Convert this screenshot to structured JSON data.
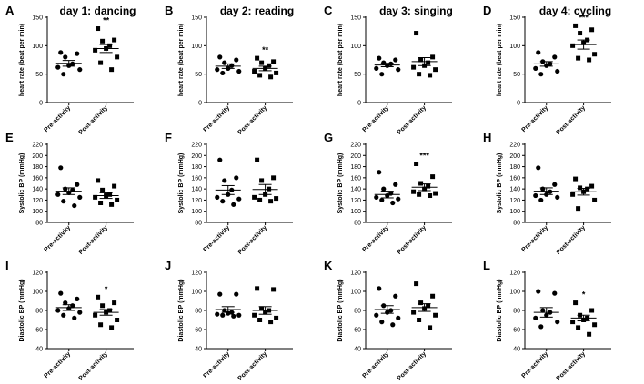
{
  "chart_data": [
    {
      "letter": "A",
      "title": "day 1: dancing",
      "type": "scatter",
      "ylabel": "heart rate (beat per min)",
      "ylim": [
        0,
        150
      ],
      "yticks": [
        0,
        50,
        100,
        150
      ],
      "categories": [
        "Pre-activity",
        "Post-activity"
      ],
      "series": [
        {
          "values": [
            88,
            86,
            80,
            68,
            65,
            62,
            58,
            50
          ]
        },
        {
          "values": [
            130,
            110,
            108,
            100,
            95,
            92,
            80,
            70,
            58
          ]
        }
      ],
      "means": [
        69,
        95
      ],
      "sem": [
        5,
        7
      ],
      "significance": "**"
    },
    {
      "letter": "B",
      "title": "day 2: reading",
      "type": "scatter",
      "ylabel": "heart rate (beat per min)",
      "ylim": [
        0,
        150
      ],
      "yticks": [
        0,
        50,
        100,
        150
      ],
      "categories": [
        "Pre-activity",
        "Post-activity"
      ],
      "series": [
        {
          "values": [
            80,
            75,
            70,
            65,
            60,
            58,
            55,
            52
          ]
        },
        {
          "values": [
            78,
            72,
            70,
            65,
            60,
            55,
            52,
            48,
            45
          ]
        }
      ],
      "means": [
        64,
        60
      ],
      "sem": [
        4,
        4
      ],
      "significance": "**"
    },
    {
      "letter": "C",
      "title": "day 3: singing",
      "type": "scatter",
      "ylabel": "heart rate (beat per min)",
      "ylim": [
        0,
        150
      ],
      "yticks": [
        0,
        50,
        100,
        150
      ],
      "categories": [
        "Pre-activity",
        "Post-activity"
      ],
      "series": [
        {
          "values": [
            78,
            75,
            70,
            68,
            65,
            60,
            58,
            50
          ]
        },
        {
          "values": [
            122,
            80,
            75,
            70,
            65,
            62,
            58,
            50,
            48
          ]
        }
      ],
      "means": [
        66,
        72
      ],
      "sem": [
        3,
        7
      ],
      "significance": ""
    },
    {
      "letter": "D",
      "title": "day 4: cycling",
      "type": "scatter",
      "ylabel": "heart rate (beat per min)",
      "ylim": [
        0,
        150
      ],
      "yticks": [
        0,
        50,
        100,
        150
      ],
      "categories": [
        "Pre-activity",
        "Post-activity"
      ],
      "series": [
        {
          "values": [
            88,
            80,
            72,
            68,
            65,
            60,
            55,
            50
          ]
        },
        {
          "values": [
            135,
            128,
            122,
            110,
            105,
            100,
            85,
            78,
            75
          ]
        }
      ],
      "means": [
        68,
        102
      ],
      "sem": [
        4,
        8
      ],
      "significance": "***"
    },
    {
      "letter": "E",
      "title": "",
      "type": "scatter",
      "ylabel": "Systolic BP (mmHg)",
      "ylim": [
        80,
        220
      ],
      "yticks": [
        80,
        100,
        120,
        140,
        160,
        180,
        200,
        220
      ],
      "categories": [
        "Pre-activity",
        "Post-activity"
      ],
      "series": [
        {
          "values": [
            178,
            148,
            140,
            138,
            133,
            130,
            125,
            118,
            110
          ]
        },
        {
          "values": [
            155,
            145,
            138,
            130,
            128,
            125,
            120,
            115,
            112
          ]
        }
      ],
      "means": [
        136,
        128
      ],
      "sem": [
        6,
        5
      ],
      "significance": ""
    },
    {
      "letter": "F",
      "title": "",
      "type": "scatter",
      "ylabel": "Systolic BP (mmHg)",
      "ylim": [
        80,
        220
      ],
      "yticks": [
        80,
        100,
        120,
        140,
        160,
        180,
        200,
        220
      ],
      "categories": [
        "Pre-activity",
        "Post-activity"
      ],
      "series": [
        {
          "values": [
            192,
            160,
            155,
            138,
            130,
            125,
            122,
            118,
            112
          ]
        },
        {
          "values": [
            192,
            160,
            155,
            140,
            130,
            125,
            123,
            120,
            118
          ]
        }
      ],
      "means": [
        138,
        139
      ],
      "sem": [
        8,
        9
      ],
      "significance": ""
    },
    {
      "letter": "G",
      "title": "",
      "type": "scatter",
      "ylabel": "Systolic BP (mmHg)",
      "ylim": [
        80,
        220
      ],
      "yticks": [
        80,
        100,
        120,
        140,
        160,
        180,
        200,
        220
      ],
      "categories": [
        "Pre-activity",
        "Post-activity"
      ],
      "series": [
        {
          "values": [
            170,
            148,
            140,
            132,
            128,
            125,
            122,
            120,
            115
          ]
        },
        {
          "values": [
            185,
            162,
            150,
            145,
            140,
            135,
            132,
            130,
            128
          ]
        }
      ],
      "means": [
        130,
        143
      ],
      "sem": [
        6,
        6
      ],
      "significance": "***"
    },
    {
      "letter": "H",
      "title": "",
      "type": "scatter",
      "ylabel": "Systolic BP (mmHg)",
      "ylim": [
        80,
        220
      ],
      "yticks": [
        80,
        100,
        120,
        140,
        160,
        180,
        200,
        220
      ],
      "categories": [
        "Pre-activity",
        "Post-activity"
      ],
      "series": [
        {
          "values": [
            178,
            148,
            140,
            135,
            130,
            128,
            125,
            120
          ]
        },
        {
          "values": [
            158,
            145,
            142,
            140,
            135,
            130,
            120,
            105
          ]
        }
      ],
      "means": [
        136,
        135
      ],
      "sem": [
        6,
        6
      ],
      "significance": ""
    },
    {
      "letter": "I",
      "title": "",
      "type": "scatter",
      "ylabel": "Diastolic BP (mmHg)",
      "ylim": [
        40,
        120
      ],
      "yticks": [
        40,
        60,
        80,
        100,
        120
      ],
      "categories": [
        "Pre-activity",
        "Post-activity"
      ],
      "series": [
        {
          "values": [
            98,
            92,
            88,
            85,
            82,
            80,
            78,
            75,
            72
          ]
        },
        {
          "values": [
            94,
            88,
            85,
            80,
            78,
            75,
            70,
            65,
            62
          ]
        }
      ],
      "means": [
        83,
        78
      ],
      "sem": [
        3,
        3
      ],
      "significance": "*"
    },
    {
      "letter": "J",
      "title": "",
      "type": "scatter",
      "ylabel": "Diastolic BP (mmHg)",
      "ylim": [
        40,
        120
      ],
      "yticks": [
        40,
        60,
        80,
        100,
        120
      ],
      "categories": [
        "Pre-activity",
        "Post-activity"
      ],
      "series": [
        {
          "values": [
            97,
            97,
            80,
            78,
            77,
            76,
            75,
            75,
            74
          ]
        },
        {
          "values": [
            103,
            102,
            82,
            80,
            78,
            75,
            72,
            70,
            68
          ]
        }
      ],
      "means": [
        81,
        80
      ],
      "sem": [
        3,
        4
      ],
      "significance": ""
    },
    {
      "letter": "K",
      "title": "",
      "type": "scatter",
      "ylabel": "Diastolic BP (mmHg)",
      "ylim": [
        40,
        120
      ],
      "yticks": [
        40,
        60,
        80,
        100,
        120
      ],
      "categories": [
        "Pre-activity",
        "Post-activity"
      ],
      "series": [
        {
          "values": [
            103,
            95,
            85,
            80,
            78,
            75,
            72,
            68,
            65
          ]
        },
        {
          "values": [
            108,
            95,
            88,
            85,
            82,
            78,
            75,
            70,
            62
          ]
        }
      ],
      "means": [
        81,
        83
      ],
      "sem": [
        4,
        4
      ],
      "significance": ""
    },
    {
      "letter": "L",
      "title": "",
      "type": "scatter",
      "ylabel": "Diastolic BP (mmHg)",
      "ylim": [
        40,
        120
      ],
      "yticks": [
        40,
        60,
        80,
        100,
        120
      ],
      "categories": [
        "Pre-activity",
        "Post-activity"
      ],
      "series": [
        {
          "values": [
            100,
            98,
            80,
            78,
            75,
            72,
            68,
            63
          ]
        },
        {
          "values": [
            88,
            80,
            75,
            72,
            70,
            68,
            65,
            62,
            55
          ]
        }
      ],
      "means": [
        78,
        72
      ],
      "sem": [
        5,
        3
      ],
      "significance": "*"
    }
  ]
}
